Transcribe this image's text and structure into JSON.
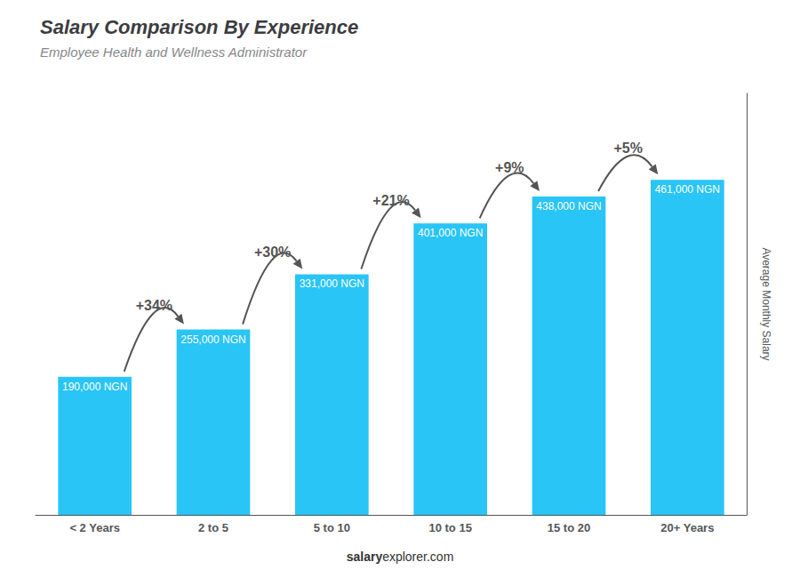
{
  "chart_data": {
    "type": "bar",
    "title": "Salary Comparison By Experience",
    "subtitle": "Employee Health and Wellness Administrator",
    "categories": [
      "< 2 Years",
      "2 to 5",
      "5 to 10",
      "10 to 15",
      "15 to 20",
      "20+ Years"
    ],
    "values": [
      190000,
      255000,
      331000,
      401000,
      438000,
      461000
    ],
    "value_labels": [
      "190,000 NGN",
      "255,000 NGN",
      "331,000 NGN",
      "401,000 NGN",
      "438,000 NGN",
      "461,000 NGN"
    ],
    "data_labels": true,
    "color": "#29c5f6",
    "ylabel": "Average Monthly Salary",
    "ylim": [
      0,
      580000
    ],
    "grid": false,
    "tick_labels": "x",
    "annotations": [
      "+34%",
      "+30%",
      "+21%",
      "+9%",
      "+5%"
    ],
    "footer": [
      "salary",
      "explorer.com"
    ]
  }
}
